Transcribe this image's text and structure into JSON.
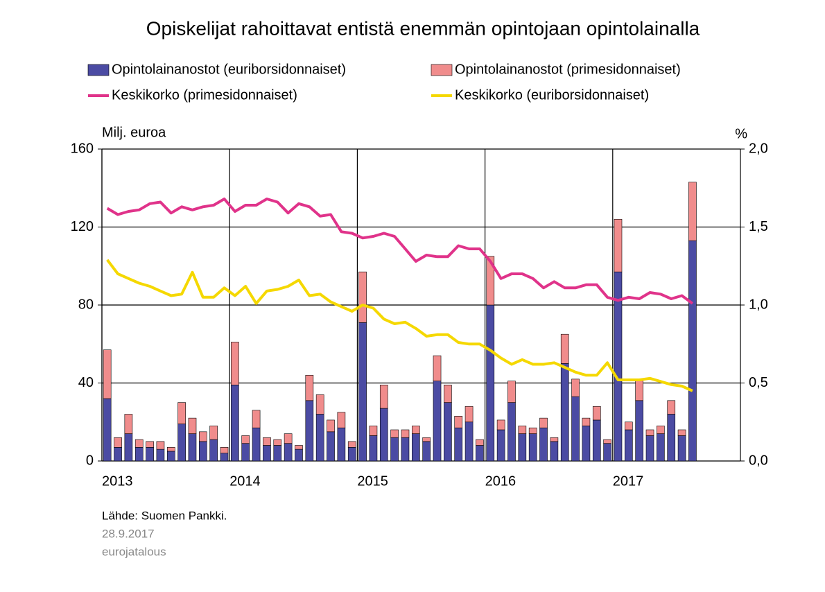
{
  "chart_data": {
    "type": "bar",
    "stacked": true,
    "title": "Opiskelijat rahoittavat entistä enemmän opintojaan opintolainalla",
    "y_label": "Milj. euroa",
    "y2_label": "%",
    "source": "Lähde: Suomen Pankki.",
    "date": "28.9.2017",
    "publisher": "eurojatalous",
    "grid": true,
    "categories": [
      "2013",
      null,
      null,
      null,
      null,
      null,
      null,
      null,
      null,
      null,
      null,
      null,
      "2014",
      null,
      null,
      null,
      null,
      null,
      null,
      null,
      null,
      null,
      null,
      null,
      "2015",
      null,
      null,
      null,
      null,
      null,
      null,
      null,
      null,
      null,
      null,
      null,
      "2016",
      null,
      null,
      null,
      null,
      null,
      null,
      null,
      null,
      null,
      null,
      null,
      "2017",
      null,
      null,
      null,
      null,
      null,
      null,
      null,
      null,
      null,
      null,
      null
    ],
    "ylim": [
      0,
      160
    ],
    "yticks": [
      0,
      40,
      80,
      120,
      160
    ],
    "y2lim": [
      0,
      2
    ],
    "y2ticks": [
      {
        "value": 0,
        "label": "0,0"
      },
      {
        "value": 0.5,
        "label": "0,5"
      },
      {
        "value": 1,
        "label": "1,0"
      },
      {
        "value": 1.5,
        "label": "1,5"
      },
      {
        "value": 2,
        "label": "2,0"
      }
    ],
    "series": [
      {
        "name": "Opintolainanostot (euriborsidonnaiset)",
        "type": "bar",
        "color": "#4b4ba3",
        "values": [
          32,
          7,
          14,
          7,
          7,
          6,
          5,
          19,
          14,
          10,
          11,
          4,
          39,
          9,
          17,
          8,
          8,
          9,
          6,
          31,
          24,
          15,
          17,
          7,
          71,
          13,
          27,
          12,
          12,
          14,
          10,
          41,
          30,
          17,
          20,
          8,
          80,
          16,
          30,
          14,
          14,
          17,
          10,
          50,
          33,
          18,
          21,
          9,
          97,
          16,
          31,
          13,
          14,
          24,
          13,
          113,
          null,
          null,
          null,
          null
        ]
      },
      {
        "name": "Opintolainanostot (primesidonnaiset)",
        "type": "bar",
        "color": "#f08c8c",
        "values": [
          25,
          5,
          10,
          4,
          3,
          4,
          2,
          11,
          8,
          5,
          7,
          3,
          22,
          4,
          9,
          4,
          3,
          5,
          2,
          13,
          10,
          6,
          8,
          3,
          26,
          5,
          12,
          4,
          4,
          4,
          2,
          13,
          9,
          6,
          8,
          3,
          25,
          5,
          11,
          4,
          3,
          5,
          2,
          15,
          9,
          4,
          7,
          2,
          27,
          4,
          11,
          3,
          4,
          7,
          3,
          30,
          null,
          null,
          null,
          null
        ]
      },
      {
        "name": "Keskikorko (primesidonnaiset)",
        "type": "line",
        "axis": "y2",
        "color": "#e0338a",
        "values": [
          1.62,
          1.58,
          1.6,
          1.61,
          1.65,
          1.66,
          1.59,
          1.63,
          1.61,
          1.63,
          1.64,
          1.68,
          1.6,
          1.64,
          1.64,
          1.68,
          1.66,
          1.59,
          1.65,
          1.63,
          1.57,
          1.58,
          1.47,
          1.46,
          1.43,
          1.44,
          1.46,
          1.44,
          1.36,
          1.28,
          1.32,
          1.31,
          1.31,
          1.38,
          1.36,
          1.36,
          1.28,
          1.17,
          1.2,
          1.2,
          1.17,
          1.11,
          1.15,
          1.11,
          1.11,
          1.13,
          1.13,
          1.05,
          1.03,
          1.05,
          1.04,
          1.08,
          1.07,
          1.04,
          1.06,
          1.01,
          null,
          null,
          null,
          null
        ]
      },
      {
        "name": "Keskikorko (euriborsidonnaiset)",
        "type": "line",
        "axis": "y2",
        "color": "#f5d800",
        "values": [
          1.29,
          1.2,
          1.17,
          1.14,
          1.12,
          1.09,
          1.06,
          1.07,
          1.21,
          1.05,
          1.05,
          1.11,
          1.06,
          1.12,
          1.01,
          1.09,
          1.1,
          1.12,
          1.16,
          1.06,
          1.07,
          1.02,
          0.99,
          0.96,
          1.0,
          0.98,
          0.91,
          0.88,
          0.89,
          0.85,
          0.8,
          0.81,
          0.81,
          0.76,
          0.75,
          0.75,
          0.71,
          0.66,
          0.62,
          0.65,
          0.62,
          0.62,
          0.63,
          0.6,
          0.57,
          0.55,
          0.55,
          0.63,
          0.52,
          0.52,
          0.52,
          0.53,
          0.51,
          0.49,
          0.48,
          0.45,
          null,
          null,
          null,
          null
        ]
      }
    ]
  }
}
